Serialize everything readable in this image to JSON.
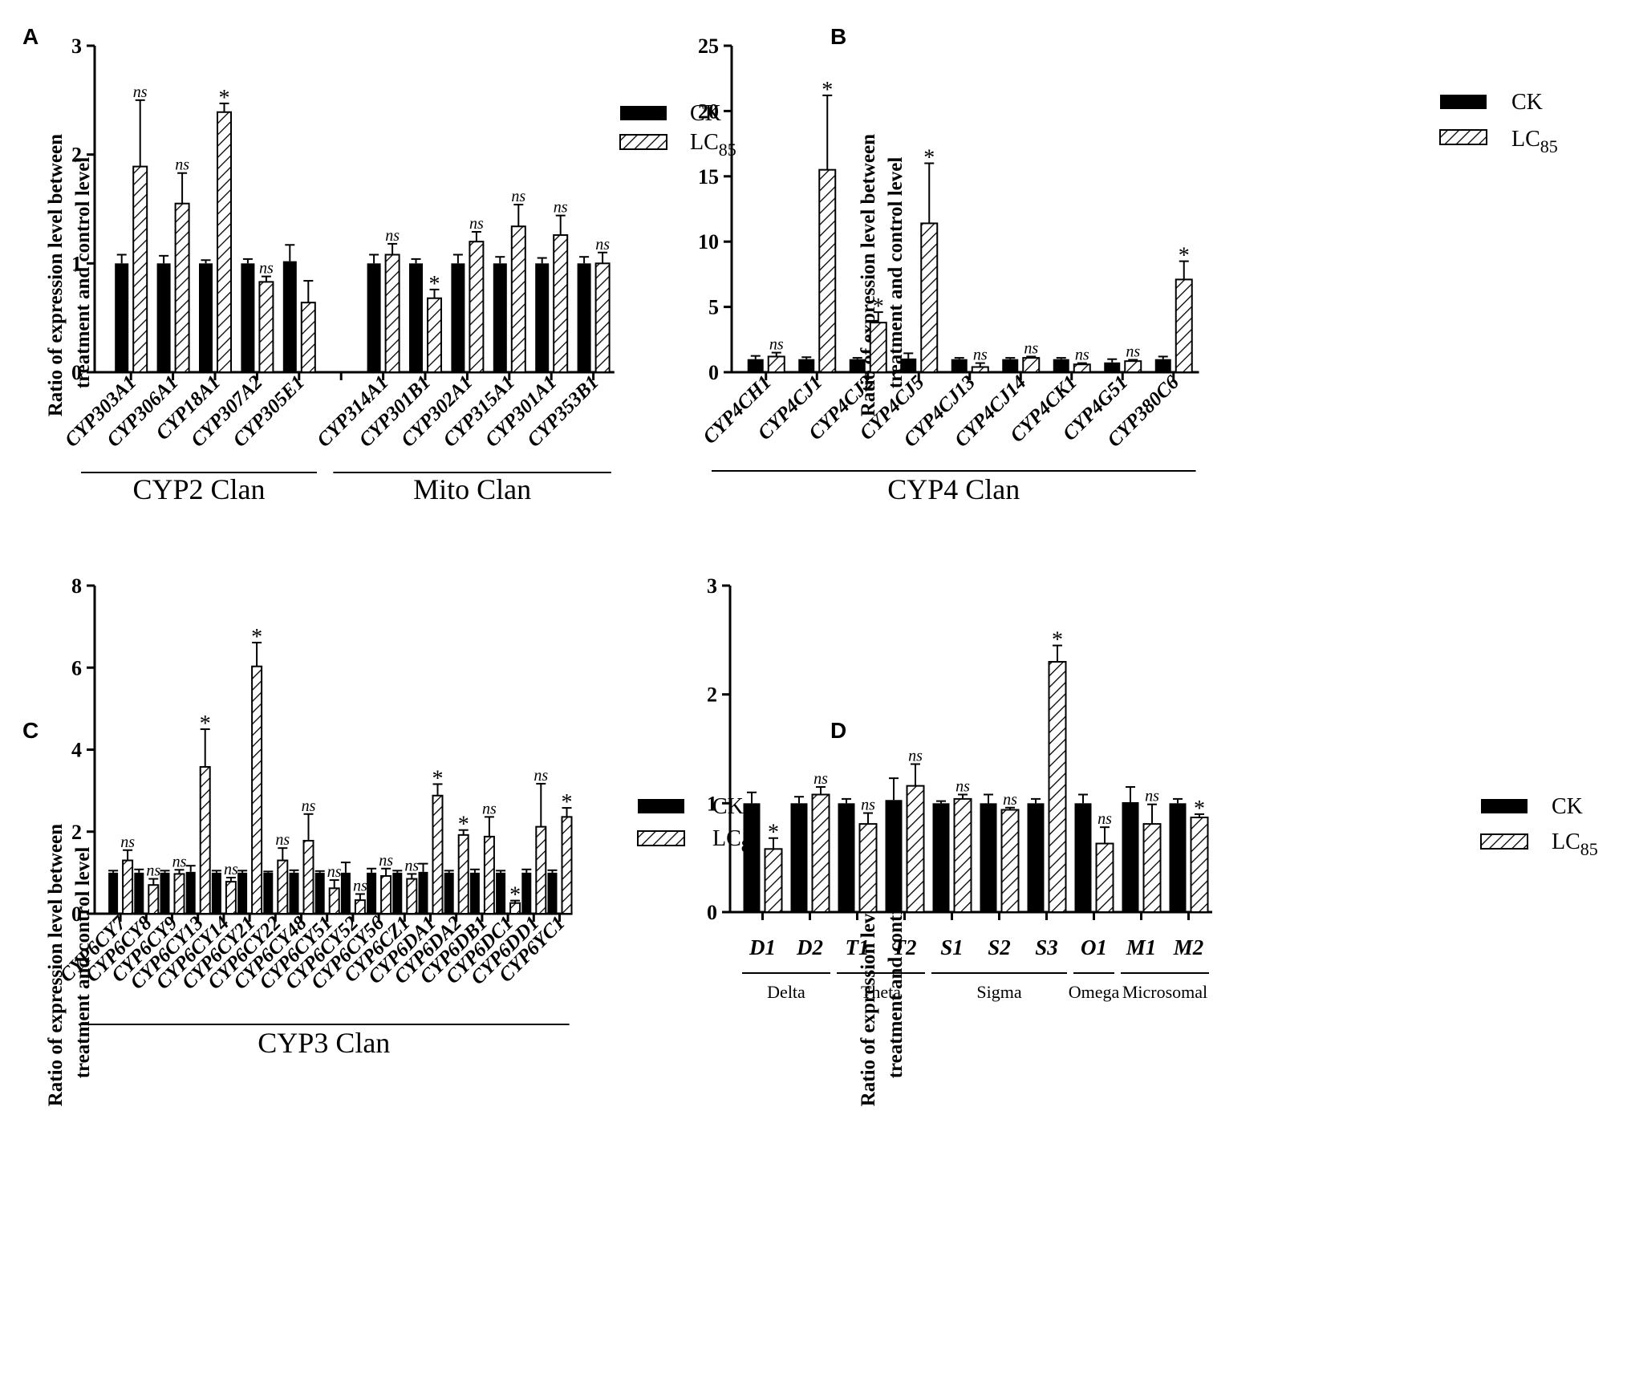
{
  "figure": {
    "legend": {
      "ck": "CK",
      "lc_base": "LC",
      "lc_sub": "85"
    },
    "colors": {
      "ck": "#000000",
      "lc_fill": "#ffffff",
      "hatch": "#000000"
    }
  },
  "chart_data": [
    {
      "panel": "A",
      "type": "bar",
      "ylabel": [
        "Ratio of expression level between",
        "treatment and control level"
      ],
      "ylim": [
        0,
        3
      ],
      "yticks": [
        0,
        1,
        2,
        3
      ],
      "categories": [
        "CYP303A1",
        "CYP306A1",
        "CYP18A1",
        "CYP307A2",
        "CYP305E1",
        "",
        "CYP314A1",
        "CYP301B1",
        "CYP302A1",
        "CYP315A1",
        "CYP301A1",
        "CYP353B1"
      ],
      "series": [
        {
          "name": "CK",
          "values": [
            1.0,
            1.0,
            1.0,
            1.0,
            1.02,
            null,
            1.0,
            1.0,
            1.0,
            1.0,
            1.0,
            1.0
          ],
          "errors": [
            0.08,
            0.07,
            0.03,
            0.04,
            0.15,
            null,
            0.08,
            0.04,
            0.08,
            0.06,
            0.05,
            0.06
          ]
        },
        {
          "name": "LC85",
          "values": [
            1.89,
            1.55,
            2.39,
            0.83,
            0.64,
            null,
            1.08,
            0.68,
            1.2,
            1.34,
            1.26,
            1.0
          ],
          "errors": [
            0.61,
            0.28,
            0.08,
            0.05,
            0.2,
            null,
            0.1,
            0.08,
            0.09,
            0.2,
            0.18,
            0.1
          ]
        }
      ],
      "annotations": [
        "ns",
        "ns",
        "*",
        "ns",
        "",
        "",
        "ns",
        "*",
        "ns",
        "ns",
        "ns",
        "ns"
      ],
      "groups": [
        {
          "label": "CYP2 Clan",
          "from": 0,
          "to": 4
        },
        {
          "label": "Mito Clan",
          "from": 6,
          "to": 11
        }
      ]
    },
    {
      "panel": "B",
      "type": "bar",
      "ylabel": [
        "Ratio of expression level between",
        "treatment and control level"
      ],
      "ylim": [
        0,
        25
      ],
      "yticks": [
        0,
        5,
        10,
        15,
        20,
        25
      ],
      "categories": [
        "CYP4CH1",
        "CYP4CJ1",
        "CYP4CJ2",
        "CYP4CJ5",
        "CYP4CJ13",
        "CYP4CJ14",
        "CYP4CK1",
        "CYP4G51",
        "CYP380C6"
      ],
      "series": [
        {
          "name": "CK",
          "values": [
            1.0,
            1.0,
            1.0,
            1.05,
            1.0,
            1.0,
            1.0,
            0.75,
            1.0
          ],
          "errors": [
            0.25,
            0.15,
            0.1,
            0.4,
            0.1,
            0.1,
            0.1,
            0.25,
            0.2
          ]
        },
        {
          "name": "LC85",
          "values": [
            1.2,
            15.5,
            3.8,
            11.4,
            0.4,
            1.1,
            0.6,
            0.85,
            7.1
          ],
          "errors": [
            0.3,
            5.7,
            0.8,
            4.6,
            0.3,
            0.1,
            0.1,
            0.1,
            1.4
          ]
        }
      ],
      "annotations": [
        "ns",
        "*",
        "*",
        "*",
        "ns",
        "ns",
        "ns",
        "ns",
        "*"
      ],
      "groups": [
        {
          "label": "CYP4 Clan",
          "from": 0,
          "to": 8
        }
      ]
    },
    {
      "panel": "C",
      "type": "bar",
      "ylabel": [
        "Ratio of expression level between",
        "treatment and control level"
      ],
      "ylim": [
        0,
        8
      ],
      "yticks": [
        0,
        2,
        4,
        6,
        8
      ],
      "categories": [
        "CYP6CY7",
        "CYP6CY8",
        "CYP6CY9",
        "CYP6CY13",
        "CYP6CY14",
        "CYP6CY21",
        "CYP6CY22",
        "CYP6CY48",
        "CYP6CY51",
        "CYP6CY52",
        "CYP6CY56",
        "CYP6CZ1",
        "CYP6DA1",
        "CYP6DA2",
        "CYP6DB1",
        "CYP6DC1",
        "CYP6DD1",
        "CYP6YC1"
      ],
      "series": [
        {
          "name": "CK",
          "values": [
            1.0,
            1.0,
            1.0,
            1.02,
            1.0,
            1.0,
            1.0,
            1.0,
            1.0,
            1.0,
            1.0,
            1.0,
            1.02,
            1.0,
            1.0,
            1.0,
            1.0,
            1.0
          ],
          "errors": [
            0.05,
            0.08,
            0.05,
            0.15,
            0.05,
            0.05,
            0.03,
            0.06,
            0.04,
            0.25,
            0.1,
            0.05,
            0.2,
            0.05,
            0.08,
            0.05,
            0.08,
            0.06
          ]
        },
        {
          "name": "LC85",
          "values": [
            1.3,
            0.7,
            0.97,
            3.58,
            0.78,
            6.03,
            1.3,
            1.78,
            0.62,
            0.33,
            0.92,
            0.85,
            2.88,
            1.92,
            1.88,
            0.26,
            2.12,
            2.36
          ]
        },
        {
          "name": "LC85_err",
          "values": [
            0.25,
            0.15,
            0.1,
            0.92,
            0.1,
            0.58,
            0.3,
            0.65,
            0.2,
            0.15,
            0.18,
            0.12,
            0.28,
            0.12,
            0.48,
            0.06,
            1.05,
            0.22
          ]
        }
      ],
      "annotations": [
        "ns",
        "ns",
        "ns",
        "*",
        "ns",
        "*",
        "ns",
        "ns",
        "ns",
        "ns",
        "ns",
        "ns",
        "*",
        "*",
        "ns",
        "*",
        "ns",
        "*"
      ],
      "groups": [
        {
          "label": "CYP3 Clan",
          "from": 0,
          "to": 17
        }
      ]
    },
    {
      "panel": "D",
      "type": "bar",
      "ylabel": [
        "Ratio of expression level between",
        "treatment and control level"
      ],
      "ylim": [
        0,
        3
      ],
      "yticks": [
        0,
        1,
        2,
        3
      ],
      "categories": [
        "D1",
        "D2",
        "T1",
        "T2",
        "S1",
        "S2",
        "S3",
        "O1",
        "M1",
        "M2"
      ],
      "series": [
        {
          "name": "CK",
          "values": [
            1.0,
            1.0,
            1.0,
            1.03,
            1.0,
            1.0,
            1.0,
            1.0,
            1.01,
            1.0
          ],
          "errors": [
            0.1,
            0.06,
            0.04,
            0.2,
            0.02,
            0.08,
            0.04,
            0.08,
            0.14,
            0.04
          ]
        },
        {
          "name": "LC85",
          "values": [
            0.58,
            1.08,
            0.81,
            1.16,
            1.04,
            0.94,
            2.3,
            0.63,
            0.81,
            0.87
          ]
        },
        {
          "name": "LC85_err",
          "values": [
            0.1,
            0.07,
            0.1,
            0.2,
            0.04,
            0.02,
            0.15,
            0.15,
            0.18,
            0.03
          ]
        }
      ],
      "annotations": [
        "*",
        "ns",
        "ns",
        "ns",
        "ns",
        "ns",
        "*",
        "ns",
        "ns",
        "*"
      ],
      "groups": [
        {
          "label": "Delta",
          "from": 0,
          "to": 1
        },
        {
          "label": "Theta",
          "from": 2,
          "to": 3
        },
        {
          "label": "Sigma",
          "from": 4,
          "to": 6
        },
        {
          "label": "Omega",
          "from": 7,
          "to": 7
        },
        {
          "label": "Microsomal",
          "from": 8,
          "to": 9
        }
      ]
    }
  ]
}
